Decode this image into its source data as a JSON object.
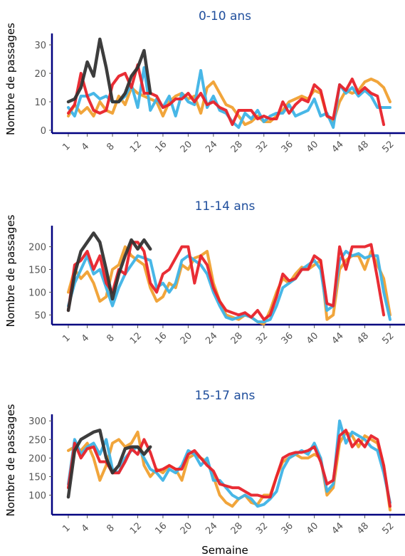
{
  "chart_data": [
    {
      "type": "line",
      "title": "0-10 ans",
      "ylabel": "Nombre de passages",
      "xlabel": "",
      "xlim": [
        1,
        52
      ],
      "ylim": [
        0,
        33
      ],
      "yticks": [
        0,
        10,
        20,
        30
      ],
      "xticks": [
        1,
        4,
        8,
        12,
        16,
        20,
        24,
        28,
        32,
        36,
        40,
        44,
        48,
        52
      ],
      "series": [
        {
          "color": "#f0a030",
          "values": [
            5,
            9,
            6,
            8,
            5,
            10,
            7,
            6,
            12,
            9,
            15,
            13,
            12,
            11,
            10,
            5,
            10,
            12,
            13,
            11,
            12,
            6,
            15,
            17,
            13,
            9,
            8,
            5,
            2,
            3,
            5,
            3,
            3,
            5,
            7,
            10,
            11,
            12,
            11,
            14,
            13,
            5,
            3,
            10,
            14,
            13,
            14,
            17,
            18,
            17,
            15,
            10
          ]
        },
        {
          "color": "#3eb3e6",
          "values": [
            8,
            5,
            12,
            12,
            13,
            11,
            12,
            10,
            10,
            12,
            16,
            8,
            22,
            7,
            11,
            8,
            12,
            5,
            13,
            10,
            9,
            21,
            8,
            12,
            7,
            6,
            3,
            1,
            6,
            4,
            7,
            3,
            5,
            6,
            6,
            9,
            5,
            6,
            7,
            11,
            5,
            6,
            1,
            16,
            13,
            15,
            12,
            14,
            12,
            8,
            8,
            8
          ]
        },
        {
          "color": "#e8222a",
          "values": [
            6,
            9,
            20,
            12,
            7,
            6,
            7,
            16,
            19,
            20,
            15,
            23,
            13,
            13,
            12,
            8,
            9,
            11,
            11,
            13,
            10,
            13,
            9,
            10,
            8,
            7,
            2,
            7,
            7,
            7,
            4,
            5,
            4,
            4,
            10,
            6,
            9,
            11,
            10,
            16,
            14,
            5,
            4,
            16,
            14,
            18,
            13,
            15,
            13,
            12,
            2,
            null
          ]
        },
        {
          "color": "#333333",
          "values": [
            10,
            11,
            15,
            24,
            19,
            32,
            22,
            10,
            10,
            13,
            19,
            22,
            28,
            13,
            null,
            null,
            null,
            null,
            null,
            null,
            null,
            null,
            null,
            null,
            null,
            null,
            null,
            null,
            null,
            null,
            null,
            null,
            null,
            null,
            null,
            null,
            null,
            null,
            null,
            null,
            null,
            null,
            null,
            null,
            null,
            null,
            null,
            null,
            null,
            null,
            null,
            null
          ]
        }
      ]
    },
    {
      "type": "line",
      "title": "11-14 ans",
      "ylabel": "Nombre de passages",
      "xlabel": "",
      "xlim": [
        1,
        52
      ],
      "ylim": [
        35,
        240
      ],
      "yticks": [
        50,
        100,
        150,
        200
      ],
      "xticks": [
        1,
        4,
        8,
        12,
        16,
        20,
        24,
        28,
        32,
        36,
        40,
        44,
        48,
        52
      ],
      "series": [
        {
          "color": "#f0a030",
          "values": [
            100,
            150,
            130,
            145,
            120,
            80,
            90,
            150,
            160,
            200,
            180,
            170,
            160,
            110,
            80,
            90,
            120,
            110,
            160,
            150,
            175,
            180,
            190,
            120,
            80,
            50,
            45,
            40,
            50,
            45,
            35,
            30,
            60,
            100,
            130,
            120,
            140,
            155,
            150,
            160,
            170,
            40,
            50,
            150,
            170,
            180,
            180,
            150,
            190,
            160,
            130,
            50
          ]
        },
        {
          "color": "#3eb3e6",
          "values": [
            70,
            120,
            150,
            180,
            140,
            150,
            110,
            70,
            110,
            140,
            160,
            180,
            175,
            170,
            110,
            120,
            100,
            120,
            170,
            180,
            170,
            160,
            140,
            100,
            70,
            45,
            40,
            45,
            50,
            45,
            35,
            35,
            40,
            70,
            110,
            120,
            130,
            150,
            160,
            170,
            150,
            60,
            70,
            170,
            190,
            180,
            185,
            175,
            180,
            180,
            100,
            40
          ]
        },
        {
          "color": "#e8222a",
          "values": [
            60,
            160,
            170,
            190,
            150,
            180,
            120,
            100,
            150,
            140,
            210,
            210,
            190,
            120,
            100,
            140,
            150,
            175,
            200,
            200,
            120,
            180,
            160,
            110,
            80,
            60,
            55,
            50,
            55,
            45,
            60,
            40,
            50,
            90,
            140,
            125,
            130,
            150,
            150,
            180,
            170,
            75,
            70,
            200,
            150,
            200,
            200,
            200,
            205,
            130,
            50,
            null
          ]
        },
        {
          "color": "#333333",
          "values": [
            60,
            140,
            190,
            210,
            230,
            210,
            150,
            85,
            140,
            180,
            215,
            195,
            215,
            195,
            null,
            null,
            null,
            null,
            null,
            null,
            null,
            null,
            null,
            null,
            null,
            null,
            null,
            null,
            null,
            null,
            null,
            null,
            null,
            null,
            null,
            null,
            null,
            null,
            null,
            null,
            null,
            null,
            null,
            null,
            null,
            null,
            null,
            null,
            null,
            null,
            null,
            null
          ]
        }
      ]
    },
    {
      "type": "line",
      "title": "15-17 ans",
      "ylabel": "Nombre de passages",
      "xlabel": "Semaine",
      "xlim": [
        1,
        52
      ],
      "ylim": [
        55,
        310
      ],
      "yticks": [
        100,
        150,
        200,
        250,
        300
      ],
      "xticks": [
        1,
        4,
        8,
        12,
        16,
        20,
        24,
        28,
        32,
        36,
        40,
        44,
        48,
        52
      ],
      "series": [
        {
          "color": "#f0a030",
          "values": [
            220,
            230,
            220,
            240,
            200,
            140,
            180,
            240,
            250,
            230,
            240,
            270,
            180,
            150,
            170,
            160,
            180,
            170,
            140,
            200,
            210,
            200,
            190,
            150,
            100,
            80,
            70,
            90,
            100,
            80,
            75,
            100,
            100,
            150,
            190,
            200,
            210,
            200,
            200,
            210,
            200,
            100,
            120,
            240,
            270,
            260,
            230,
            260,
            250,
            240,
            180,
            60
          ]
        },
        {
          "color": "#3eb3e6",
          "values": [
            130,
            250,
            210,
            230,
            240,
            210,
            250,
            170,
            160,
            200,
            220,
            230,
            200,
            170,
            160,
            140,
            170,
            160,
            180,
            220,
            210,
            180,
            200,
            140,
            140,
            120,
            100,
            90,
            100,
            90,
            70,
            75,
            90,
            110,
            170,
            200,
            210,
            220,
            210,
            240,
            200,
            110,
            130,
            300,
            240,
            270,
            260,
            250,
            230,
            220,
            160,
            80
          ]
        },
        {
          "color": "#e8222a",
          "values": [
            120,
            240,
            200,
            225,
            230,
            190,
            190,
            160,
            160,
            190,
            225,
            210,
            250,
            215,
            165,
            170,
            180,
            170,
            170,
            210,
            220,
            200,
            180,
            165,
            130,
            125,
            120,
            120,
            110,
            100,
            100,
            95,
            95,
            150,
            200,
            210,
            215,
            215,
            220,
            230,
            190,
            130,
            140,
            260,
            275,
            230,
            250,
            230,
            260,
            250,
            180,
            70
          ]
        },
        {
          "color": "#333333",
          "values": [
            95,
            220,
            250,
            260,
            270,
            275,
            200,
            160,
            180,
            225,
            230,
            230,
            210,
            230,
            null,
            null,
            null,
            null,
            null,
            null,
            null,
            null,
            null,
            null,
            null,
            null,
            null,
            null,
            null,
            null,
            null,
            null,
            null,
            null,
            null,
            null,
            null,
            null,
            null,
            null,
            null,
            null,
            null,
            null,
            null,
            null,
            null,
            null,
            null,
            null,
            null,
            null
          ]
        }
      ]
    }
  ]
}
